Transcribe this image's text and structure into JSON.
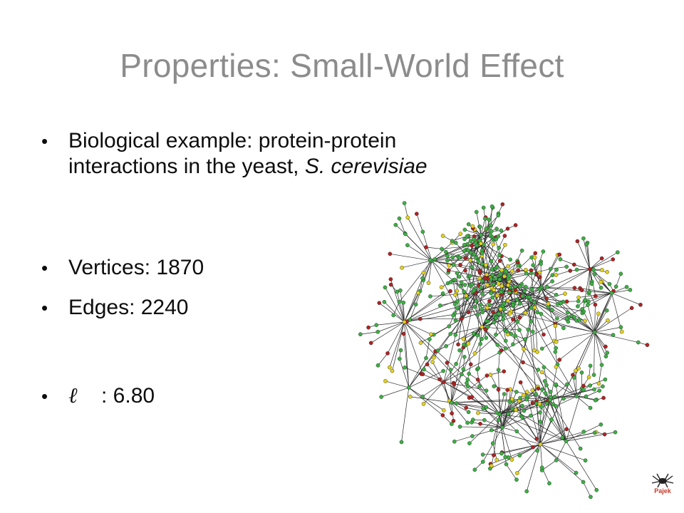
{
  "slide": {
    "title": "Properties: Small-World Effect",
    "bullets": [
      {
        "prefix": "Biological example: protein-protein",
        "line2_prefix": "interactions in the yeast, ",
        "line2_italic": "S. cerevisiae"
      },
      {
        "text": "Vertices: 1870"
      },
      {
        "text": "Edges: 2240"
      },
      {
        "symbol": "ℓ",
        "text": ": 6.80"
      }
    ],
    "logo_text": "Pajek"
  },
  "colors": {
    "title": "#8c8c8c",
    "node_green": "#3cb043",
    "node_red": "#b22222",
    "node_yellow": "#e3d21b",
    "edge": "#2b2b2b"
  }
}
